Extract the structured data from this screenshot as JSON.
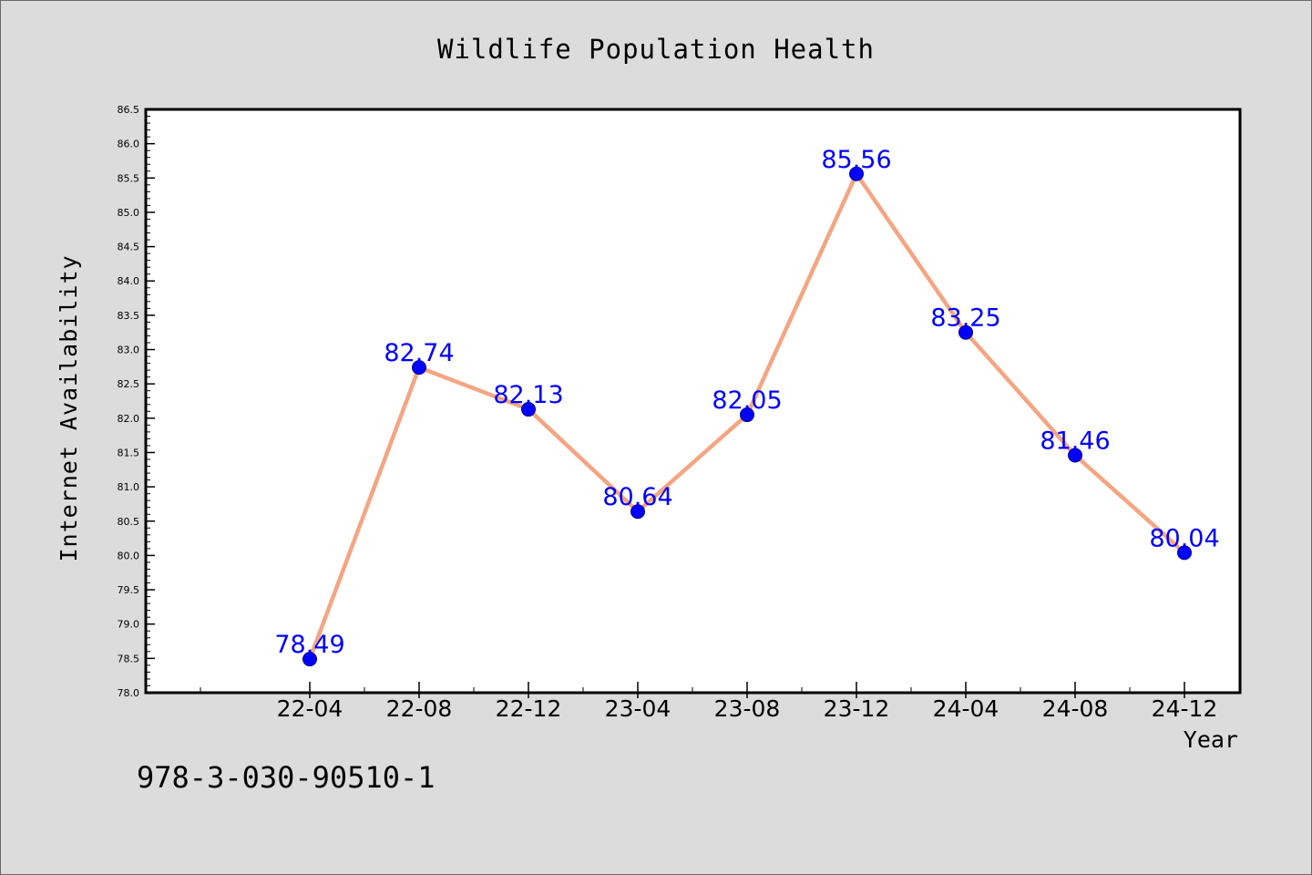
{
  "footer_code": "978-3-030-90510-1",
  "colors": {
    "background": "#dcdcdc",
    "plot_background": "#ffffff",
    "line": "#f4a582",
    "marker": "#0000ff",
    "data_label": "#0000ff",
    "text": "#000000"
  },
  "chart_data": {
    "type": "line",
    "title": "Wildlife Population Health",
    "xlabel": "Year",
    "ylabel": "Internet Availability",
    "categories": [
      "22-04",
      "22-08",
      "22-12",
      "23-04",
      "23-08",
      "23-12",
      "24-04",
      "24-08",
      "24-12"
    ],
    "series": [
      {
        "values": [
          78.49,
          82.74,
          82.13,
          80.64,
          82.05,
          85.56,
          83.25,
          81.46,
          80.04
        ],
        "data_labels": [
          "78.49",
          "82.74",
          "82.13",
          "80.64",
          "82.05",
          "85.56",
          "83.25",
          "81.46",
          "80.04"
        ]
      }
    ],
    "ylim": [
      78.0,
      86.5
    ],
    "yticks": [
      "78.0",
      "78.5",
      "79.0",
      "79.5",
      "80.0",
      "80.5",
      "81.0",
      "81.5",
      "82.0",
      "82.5",
      "83.0",
      "83.5",
      "84.0",
      "84.5",
      "85.0",
      "85.5",
      "86.0",
      "86.5"
    ],
    "grid": false,
    "legend": "none"
  }
}
